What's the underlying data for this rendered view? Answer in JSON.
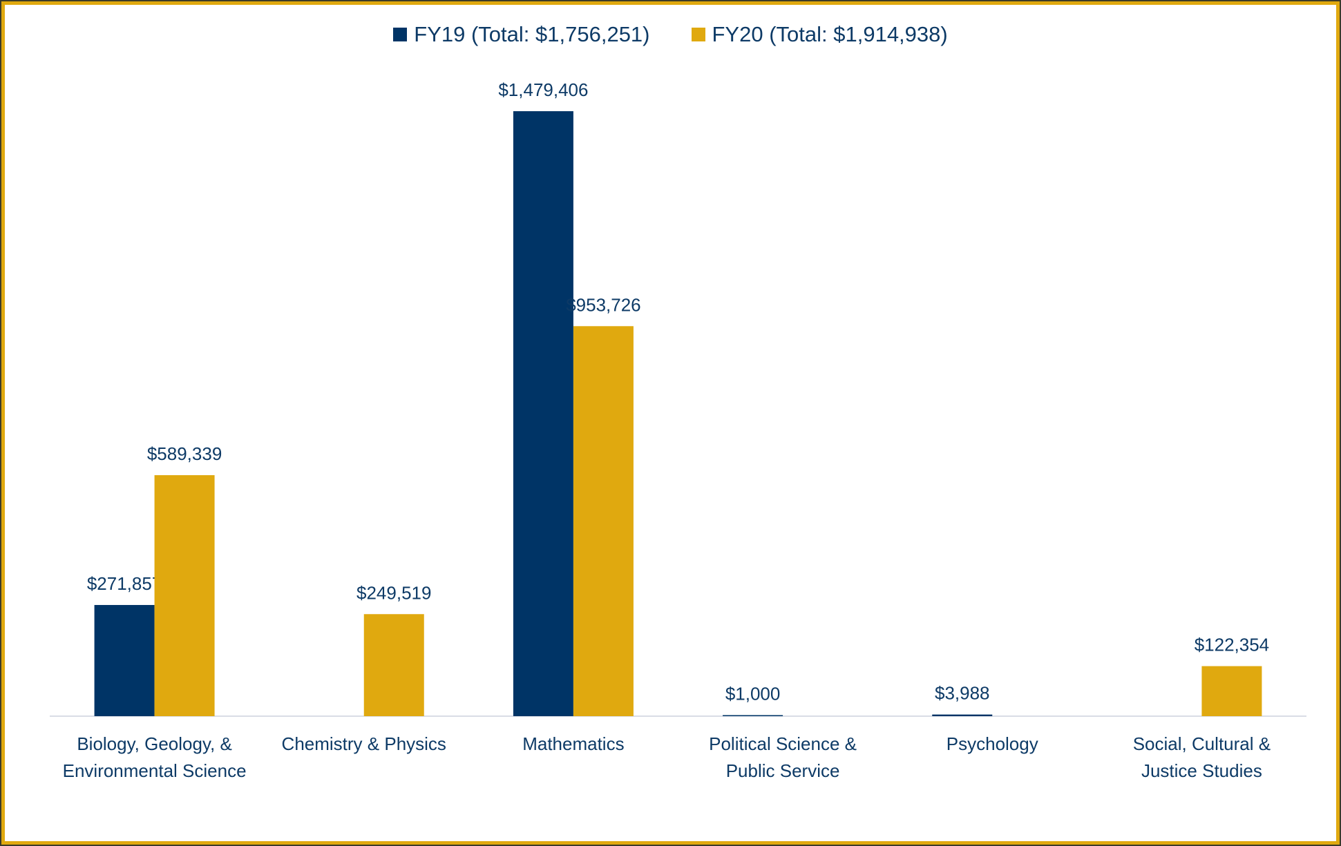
{
  "chart_data": {
    "type": "bar",
    "categories": [
      "Biology, Geology, & Environmental Science",
      "Chemistry & Physics",
      "Mathematics",
      "Political Science & Public Service",
      "Psychology",
      "Social, Cultural & Justice Studies"
    ],
    "series": [
      {
        "name": "FY19 (Total: $1,756,251)",
        "color": "#003466",
        "values": [
          271857,
          null,
          1479406,
          1000,
          3988,
          null
        ],
        "value_labels": [
          "$271,857",
          null,
          "$1,479,406",
          "$1,000",
          "$3,988",
          null
        ]
      },
      {
        "name": "FY20 (Total: $1,914,938)",
        "color": "#e0a90f",
        "values": [
          589339,
          249519,
          953726,
          null,
          null,
          122354
        ],
        "value_labels": [
          "$589,339",
          "$249,519",
          "$953,726",
          null,
          null,
          "$122,354"
        ]
      }
    ],
    "legend": "top"
  }
}
